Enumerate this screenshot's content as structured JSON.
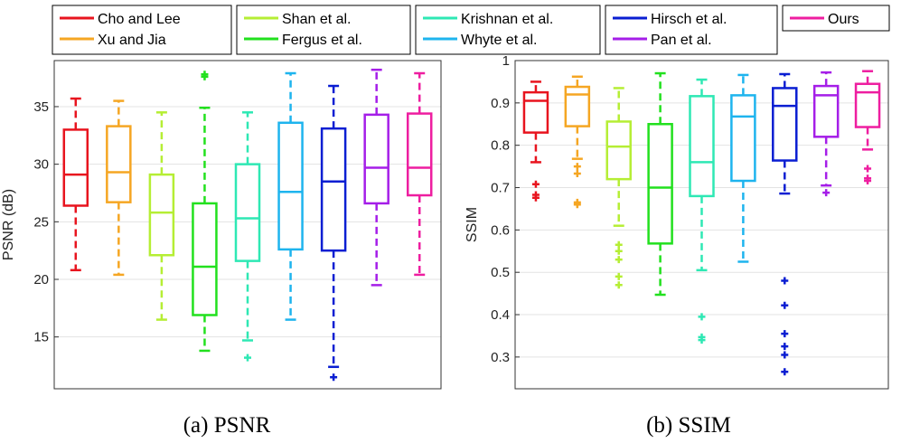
{
  "legend": [
    {
      "name": "Cho and Lee",
      "color": "#e8141e"
    },
    {
      "name": "Xu and Jia",
      "color": "#f5a623"
    },
    {
      "name": "Shan et al.",
      "color": "#b5ee34"
    },
    {
      "name": "Fergus et al.",
      "color": "#22e01e"
    },
    {
      "name": "Krishnan et al.",
      "color": "#2ee8b4"
    },
    {
      "name": "Whyte et al.",
      "color": "#1eb4ee"
    },
    {
      "name": "Hirsch et al.",
      "color": "#0a1ed2"
    },
    {
      "name": "Pan et al.",
      "color": "#a51ee8"
    },
    {
      "name": "Ours",
      "color": "#ee1ea0"
    }
  ],
  "captions": [
    "(a)  PSNR",
    "(b)  SSIM"
  ],
  "chart_data": [
    {
      "type": "box",
      "title": "",
      "xlabel": "",
      "ylabel": "PSNR (dB)",
      "ylim": [
        10.5,
        39
      ],
      "yticks": [
        15,
        20,
        25,
        30,
        35
      ],
      "grid": "horizontal",
      "series": [
        {
          "name": "Cho and Lee",
          "whisker_low": 20.8,
          "q1": 26.4,
          "median": 29.1,
          "q3": 33.0,
          "whisker_high": 35.7,
          "outliers": []
        },
        {
          "name": "Xu and Jia",
          "whisker_low": 20.4,
          "q1": 26.7,
          "median": 29.3,
          "q3": 33.3,
          "whisker_high": 35.5,
          "outliers": []
        },
        {
          "name": "Shan et al.",
          "whisker_low": 16.5,
          "q1": 22.1,
          "median": 25.8,
          "q3": 29.1,
          "whisker_high": 34.5,
          "outliers": []
        },
        {
          "name": "Fergus et al.",
          "whisker_low": 13.8,
          "q1": 16.9,
          "median": 21.1,
          "q3": 26.6,
          "whisker_high": 34.9,
          "outliers": [
            37.6,
            37.8
          ]
        },
        {
          "name": "Krishnan et al.",
          "whisker_low": 14.7,
          "q1": 21.6,
          "median": 25.3,
          "q3": 30.0,
          "whisker_high": 34.5,
          "outliers": [
            13.2
          ]
        },
        {
          "name": "Whyte et al.",
          "whisker_low": 16.5,
          "q1": 22.6,
          "median": 27.6,
          "q3": 33.6,
          "whisker_high": 37.9,
          "outliers": []
        },
        {
          "name": "Hirsch et al.",
          "whisker_low": 12.4,
          "q1": 22.5,
          "median": 28.5,
          "q3": 33.1,
          "whisker_high": 36.8,
          "outliers": [
            11.5
          ]
        },
        {
          "name": "Pan et al.",
          "whisker_low": 19.5,
          "q1": 26.6,
          "median": 29.7,
          "q3": 34.3,
          "whisker_high": 38.2,
          "outliers": []
        },
        {
          "name": "Ours",
          "whisker_low": 20.4,
          "q1": 27.3,
          "median": 29.7,
          "q3": 34.4,
          "whisker_high": 37.9,
          "outliers": []
        }
      ]
    },
    {
      "type": "box",
      "title": "",
      "xlabel": "",
      "ylabel": "SSIM",
      "ylim": [
        0.225,
        1.0
      ],
      "yticks": [
        0.3,
        0.4,
        0.5,
        0.6,
        0.7,
        0.8,
        0.9,
        1
      ],
      "grid": "horizontal",
      "series": [
        {
          "name": "Cho and Lee",
          "whisker_low": 0.76,
          "q1": 0.83,
          "median": 0.905,
          "q3": 0.925,
          "whisker_high": 0.95,
          "outliers": [
            0.708,
            0.683,
            0.676
          ]
        },
        {
          "name": "Xu and Jia",
          "whisker_low": 0.768,
          "q1": 0.845,
          "median": 0.92,
          "q3": 0.938,
          "whisker_high": 0.962,
          "outliers": [
            0.75,
            0.733,
            0.665,
            0.66
          ]
        },
        {
          "name": "Shan et al.",
          "whisker_low": 0.61,
          "q1": 0.72,
          "median": 0.797,
          "q3": 0.856,
          "whisker_high": 0.935,
          "outliers": [
            0.565,
            0.55,
            0.53,
            0.49,
            0.47
          ]
        },
        {
          "name": "Fergus et al.",
          "whisker_low": 0.447,
          "q1": 0.568,
          "median": 0.7,
          "q3": 0.85,
          "whisker_high": 0.97,
          "outliers": []
        },
        {
          "name": "Krishnan et al.",
          "whisker_low": 0.505,
          "q1": 0.68,
          "median": 0.76,
          "q3": 0.916,
          "whisker_high": 0.955,
          "outliers": [
            0.395,
            0.347,
            0.34
          ]
        },
        {
          "name": "Whyte et al.",
          "whisker_low": 0.525,
          "q1": 0.716,
          "median": 0.868,
          "q3": 0.918,
          "whisker_high": 0.966,
          "outliers": []
        },
        {
          "name": "Hirsch et al.",
          "whisker_low": 0.686,
          "q1": 0.764,
          "median": 0.893,
          "q3": 0.935,
          "whisker_high": 0.968,
          "outliers": [
            0.48,
            0.422,
            0.355,
            0.325,
            0.305,
            0.265
          ]
        },
        {
          "name": "Pan et al.",
          "whisker_low": 0.705,
          "q1": 0.82,
          "median": 0.918,
          "q3": 0.94,
          "whisker_high": 0.972,
          "outliers": [
            0.688
          ]
        },
        {
          "name": "Ours",
          "whisker_low": 0.79,
          "q1": 0.843,
          "median": 0.925,
          "q3": 0.945,
          "whisker_high": 0.975,
          "outliers": [
            0.745,
            0.722,
            0.716
          ]
        }
      ]
    }
  ]
}
